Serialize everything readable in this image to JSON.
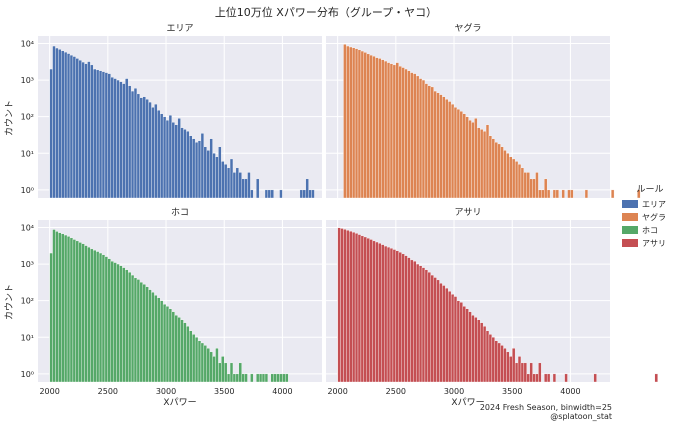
{
  "figure": {
    "title": "上位10万位 Xパワー分布（グループ・ヤコ）",
    "xlabel": "Xパワー",
    "ylabel": "カウント",
    "footer": [
      "2024 Fresh Season, binwidth=25",
      "@splatoon_stat"
    ]
  },
  "legend": {
    "title": "ルール",
    "placement": "right",
    "items": [
      {
        "label": "エリア",
        "color": "#4c72b0"
      },
      {
        "label": "ヤグラ",
        "color": "#dd8452"
      },
      {
        "label": "ホコ",
        "color": "#55a868"
      },
      {
        "label": "アサリ",
        "color": "#c44e52"
      }
    ]
  },
  "chart_data": {
    "type": "bar",
    "style": "histogram",
    "binwidth": 25,
    "yscale": "log",
    "xlim": [
      1900,
      4340
    ],
    "ylim": [
      0.6,
      16000
    ],
    "xticks": [
      2000,
      2500,
      3000,
      3500,
      4000
    ],
    "xtick_labels": [
      "2000",
      "2500",
      "3000",
      "3500",
      "4000"
    ],
    "yticks": [
      1,
      10,
      100,
      1000,
      10000
    ],
    "ytick_labels": [
      "10⁰",
      "10¹",
      "10²",
      "10³",
      "10⁴"
    ],
    "grid": true,
    "panels": [
      {
        "title": "エリア",
        "color": "#4c72b0",
        "start": 2000,
        "counts": [
          2000,
          8500,
          7500,
          6900,
          6300,
          5800,
          5300,
          4800,
          4400,
          3900,
          3500,
          3100,
          2800,
          3200,
          2600,
          2000,
          1900,
          1800,
          1700,
          1600,
          1500,
          1200,
          1100,
          1000,
          900,
          800,
          1100,
          700,
          500,
          600,
          420,
          330,
          350,
          300,
          250,
          180,
          220,
          150,
          120,
          100,
          80,
          110,
          70,
          60,
          90,
          50,
          45,
          40,
          30,
          25,
          20,
          22,
          35,
          15,
          12,
          25,
          10,
          8,
          15,
          6,
          5,
          4,
          7,
          3,
          4,
          3,
          2,
          2,
          3,
          1,
          0,
          2,
          0,
          0,
          1,
          1,
          1,
          0,
          0,
          1,
          0,
          0,
          0,
          0,
          0,
          0,
          1,
          1,
          2,
          1,
          1,
          0,
          0,
          0,
          0,
          0,
          0,
          0,
          0,
          0,
          0,
          0,
          0,
          0,
          0,
          0,
          0,
          0,
          0,
          0,
          0,
          0,
          1
        ]
      },
      {
        "title": "ヤグラ",
        "color": "#dd8452",
        "start": 2050,
        "counts": [
          9500,
          8500,
          8000,
          7600,
          7200,
          6700,
          6200,
          5700,
          5200,
          4800,
          4500,
          4100,
          3900,
          3600,
          3300,
          3000,
          2800,
          2600,
          3000,
          2400,
          2200,
          2000,
          1800,
          1600,
          1500,
          1300,
          1100,
          1000,
          800,
          700,
          650,
          500,
          450,
          400,
          350,
          300,
          260,
          220,
          180,
          160,
          140,
          120,
          100,
          80,
          70,
          90,
          50,
          45,
          40,
          60,
          30,
          25,
          20,
          18,
          15,
          12,
          10,
          8,
          7,
          6,
          5,
          4,
          3,
          3,
          2,
          2,
          3,
          1,
          1,
          2,
          1,
          0,
          1,
          1,
          0,
          1,
          0,
          1,
          1,
          0,
          0,
          0,
          0,
          1,
          0,
          0,
          0,
          0,
          0,
          0,
          0,
          0,
          1,
          0,
          0,
          0,
          0,
          0,
          0,
          0,
          0,
          1
        ]
      },
      {
        "title": "ホコ",
        "color": "#55a868",
        "start": 2000,
        "counts": [
          2000,
          8800,
          7800,
          7200,
          6700,
          6200,
          5700,
          5200,
          4700,
          4300,
          3900,
          3600,
          3200,
          2900,
          2600,
          2400,
          2200,
          2000,
          1800,
          1600,
          1400,
          1200,
          1100,
          1000,
          900,
          800,
          700,
          600,
          500,
          420,
          380,
          320,
          280,
          240,
          200,
          170,
          140,
          120,
          100,
          80,
          70,
          60,
          50,
          40,
          35,
          30,
          25,
          20,
          15,
          12,
          10,
          8,
          7,
          6,
          5,
          4,
          3,
          5,
          2,
          3,
          2,
          1,
          2,
          1,
          1,
          2,
          1,
          1,
          0,
          1,
          0,
          1,
          1,
          1,
          1,
          0,
          1,
          1,
          1,
          1,
          1,
          1,
          0,
          0,
          0,
          0,
          0,
          0,
          0,
          0,
          0,
          0,
          0,
          0,
          0,
          0,
          0,
          0,
          0,
          0,
          0,
          0,
          0,
          0,
          0,
          0,
          0,
          0,
          0,
          0,
          0,
          1
        ]
      },
      {
        "title": "アサリ",
        "color": "#c44e52",
        "start": 2000,
        "counts": [
          9800,
          9400,
          8900,
          8400,
          7900,
          7400,
          6900,
          6400,
          5900,
          5500,
          5100,
          4700,
          4300,
          4000,
          3700,
          3400,
          3100,
          2900,
          2700,
          2500,
          2300,
          2100,
          1900,
          1700,
          1500,
          1300,
          1200,
          1000,
          900,
          800,
          700,
          600,
          500,
          430,
          370,
          300,
          260,
          220,
          180,
          150,
          130,
          100,
          90,
          70,
          60,
          50,
          40,
          35,
          30,
          25,
          20,
          15,
          12,
          10,
          8,
          7,
          6,
          5,
          4,
          3,
          5,
          2,
          3,
          2,
          2,
          1,
          2,
          1,
          1,
          2,
          0,
          1,
          1,
          0,
          1,
          0,
          0,
          0,
          1,
          0,
          0,
          0,
          0,
          0,
          0,
          0,
          0,
          0,
          1,
          0,
          0,
          0,
          0,
          0,
          0,
          0,
          0,
          0,
          0,
          0,
          0,
          0,
          0,
          0,
          0,
          0,
          0,
          0,
          0,
          1
        ]
      }
    ]
  }
}
